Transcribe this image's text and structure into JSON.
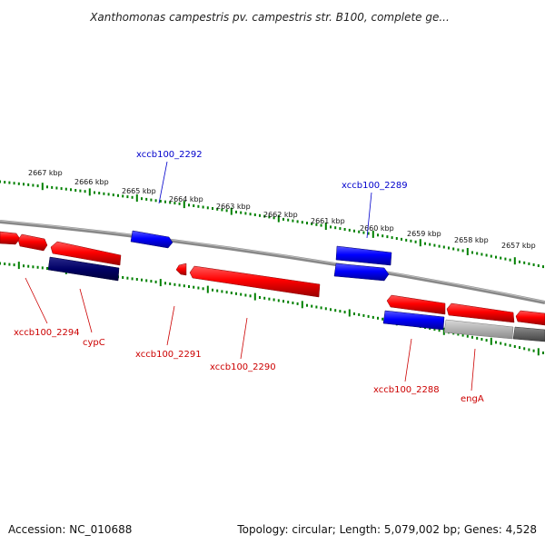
{
  "title": "Xanthomonas campestris pv. campestris str. B100, complete ge...",
  "footer": {
    "accession": "Accession: NC_010688",
    "summary": "Topology: circular; Length: 5,079,002 bp; Genes: 4,528"
  },
  "colors": {
    "forward_gene": "#ff0000",
    "reverse_gene": "#0000ff",
    "reverse_gene_dark": "#000066",
    "rna_or_other": "#b3b3b3",
    "other_dark": "#666666",
    "tick": "#008000",
    "backbone": "#888888",
    "forward_label": "#cc0000",
    "reverse_label": "#0000cc"
  },
  "ticks": {
    "outer": [
      "2667 kbp",
      "2666 kbp",
      "2665 kbp",
      "2664 kbp",
      "2663 kbp",
      "2662 kbp",
      "2661 kbp",
      "2660 kbp",
      "2659 kbp",
      "2658 kbp",
      "2657 kbp"
    ]
  },
  "gene_labels": {
    "xccb100_2292": "xccb100_2292",
    "xccb100_2289": "xccb100_2289",
    "xccb100_2294": "xccb100_2294",
    "cypC": "cypC",
    "xccb100_2291": "xccb100_2291",
    "xccb100_2290": "xccb100_2290",
    "xccb100_2288": "xccb100_2288",
    "engA": "engA"
  }
}
